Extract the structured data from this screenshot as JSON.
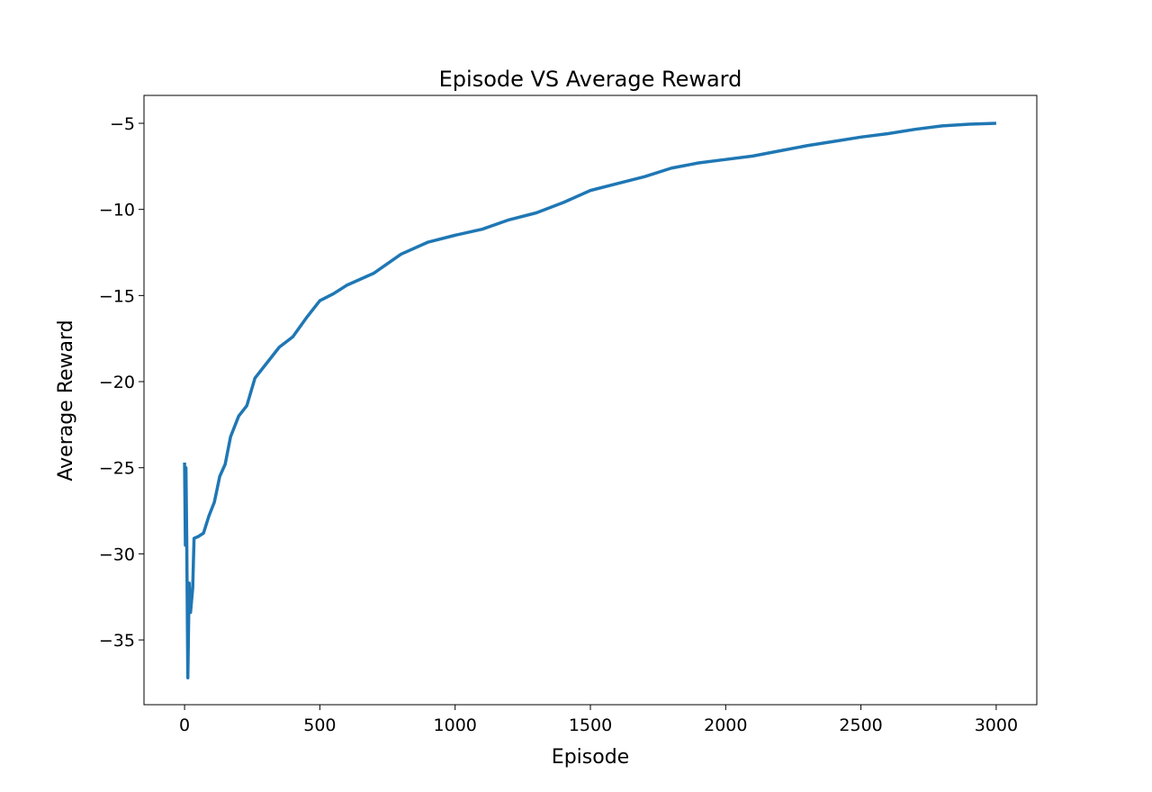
{
  "chart_data": {
    "type": "line",
    "title": "Episode VS Average Reward",
    "xlabel": "Episode",
    "ylabel": "Average Reward",
    "x": [
      0,
      3,
      5,
      8,
      12,
      17,
      22,
      30,
      35,
      50,
      70,
      90,
      110,
      130,
      150,
      170,
      200,
      230,
      260,
      300,
      350,
      400,
      450,
      500,
      550,
      600,
      700,
      800,
      900,
      1000,
      1100,
      1200,
      1300,
      1400,
      1500,
      1600,
      1700,
      1800,
      1900,
      2000,
      2100,
      2200,
      2300,
      2400,
      2500,
      2600,
      2700,
      2800,
      2900,
      3000
    ],
    "series": [
      {
        "name": "Average Reward",
        "color": "#1f77b4",
        "values": [
          -24.7,
          -29.5,
          -25,
          -29.3,
          -37.2,
          -31.7,
          -33.4,
          -32,
          -29.1,
          -29.0,
          -28.8,
          -27.8,
          -27,
          -25.5,
          -24.8,
          -23.2,
          -22.0,
          -21.4,
          -19.8,
          -19.0,
          -18,
          -17.4,
          -16.3,
          -15.3,
          -14.9,
          -14.4,
          -13.7,
          -12.6,
          -11.9,
          -11.5,
          -11.15,
          -10.6,
          -10.2,
          -9.6,
          -8.9,
          -8.5,
          -8.1,
          -7.6,
          -7.3,
          -7.1,
          -6.9,
          -6.6,
          -6.3,
          -6.05,
          -5.8,
          -5.6,
          -5.35,
          -5.15,
          -5.05,
          -5.0
        ]
      }
    ],
    "xlim": [
      -150,
      3150
    ],
    "ylim": [
      -38.76,
      -3.38
    ],
    "xticks": [
      0,
      500,
      1000,
      1500,
      2000,
      2500,
      3000
    ],
    "yticks": [
      {
        "value": -35,
        "label": "−35"
      },
      {
        "value": -30,
        "label": "−30"
      },
      {
        "value": -25,
        "label": "−25"
      },
      {
        "value": -20,
        "label": "−20"
      },
      {
        "value": -15,
        "label": "−15"
      },
      {
        "value": -10,
        "label": "−10"
      },
      {
        "value": -5,
        "label": "−5"
      }
    ]
  }
}
